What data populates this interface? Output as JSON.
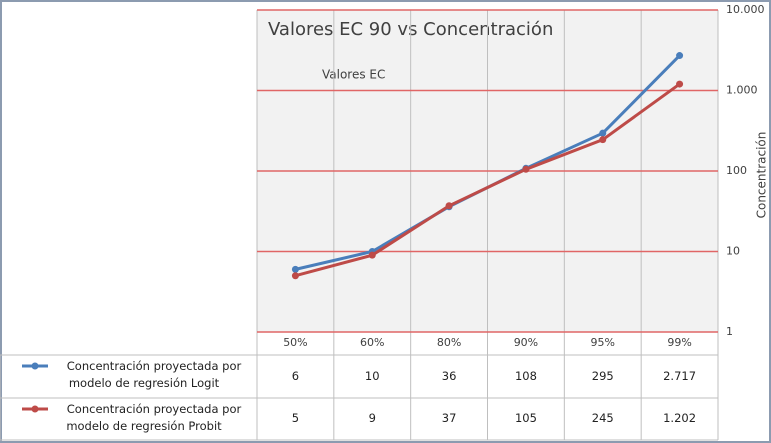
{
  "chart_data": {
    "type": "line",
    "title": "Valores EC 90 vs Concentración",
    "x_label": "Valores EC",
    "y_label": "Concentración",
    "categories": [
      "50%",
      "60%",
      "80%",
      "90%",
      "95%",
      "99%"
    ],
    "series": [
      {
        "name": "Concentración proyectada por modelo de regresión Logit",
        "color": "#4a7ebb",
        "values": [
          6,
          10,
          36,
          108,
          295,
          2717
        ],
        "value_labels": [
          "6",
          "10",
          "36",
          "108",
          "295",
          "2.717"
        ]
      },
      {
        "name": "Concentración proyectada por modelo de regresión Probit",
        "color": "#be4b48",
        "values": [
          5,
          9,
          37,
          105,
          245,
          1202
        ],
        "value_labels": [
          "5",
          "9",
          "37",
          "105",
          "245",
          "1.202"
        ]
      }
    ],
    "log_scale": true,
    "ylim": [
      1,
      10000
    ],
    "yticks": [
      1,
      10,
      100,
      {
        "value": 1000,
        "label": "1.000"
      },
      {
        "value": 10000,
        "label": "10.000"
      }
    ],
    "grid": true,
    "grid_color": "#e06666",
    "data_table": true
  }
}
